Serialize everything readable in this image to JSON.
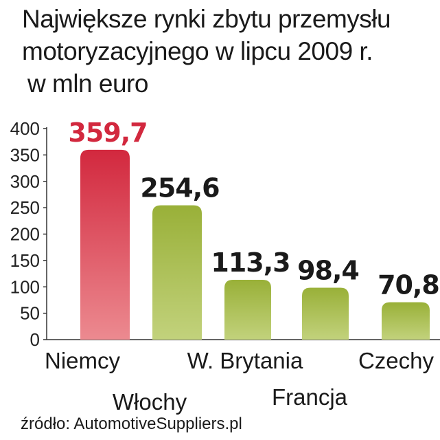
{
  "header": {
    "title_line1": "Największe rynki zbytu przemysłu",
    "title_line2": "motoryzacyjnego w lipcu 2009 r.",
    "unit": "w mln euro"
  },
  "chart_data": {
    "type": "bar",
    "categories": [
      "Niemcy",
      "Włochy",
      "W. Brytania",
      "Francja",
      "Czechy"
    ],
    "values": [
      359.7,
      254.6,
      113.3,
      98.4,
      70.8
    ],
    "value_labels": [
      "359,7",
      "254,6",
      "113,3",
      "98,4",
      "70,8"
    ],
    "yticks": [
      "0",
      "50",
      "100",
      "150",
      "200",
      "250",
      "300",
      "350",
      "400"
    ],
    "ylim": [
      0,
      400
    ],
    "highlight_color": "#d2283e",
    "bar_color": "#9cb33c",
    "grid": false
  },
  "footer": {
    "source": "źródło: AutomotiveSuppliers.pl"
  }
}
